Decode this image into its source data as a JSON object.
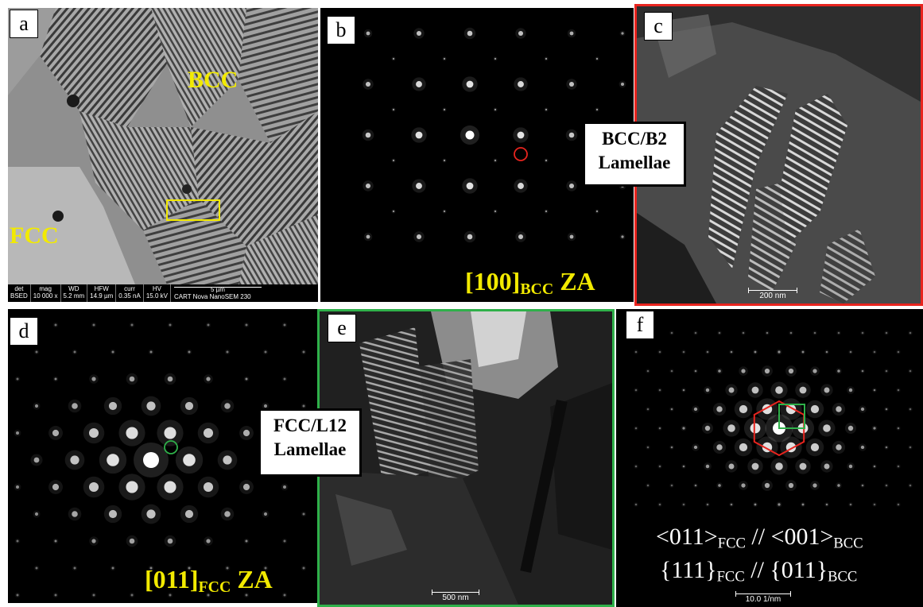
{
  "panels": {
    "a": {
      "label": "a",
      "bcc_text": "BCC",
      "fcc_text": "FCC",
      "databar": {
        "cols": [
          {
            "head": "det",
            "val": "BSED"
          },
          {
            "head": "mag",
            "val": "10 000 x"
          },
          {
            "head": "WD",
            "val": "5.2 mm"
          },
          {
            "head": "HFW",
            "val": "14.9 µm"
          },
          {
            "head": "curr",
            "val": "0.35 nA"
          },
          {
            "head": "HV",
            "val": "15.0 kV"
          }
        ],
        "scale": "5 µm",
        "instrument": "CART Nova NanoSEM 230"
      }
    },
    "b": {
      "label": "b",
      "zone_main": "[100]",
      "zone_sub": "BCC",
      "zone_suffix": "ZA"
    },
    "c": {
      "label": "c",
      "scale": "200 nm",
      "border_color": "#e8241e"
    },
    "d": {
      "label": "d",
      "zone_main": "[011]",
      "zone_sub": "FCC",
      "zone_suffix": "ZA"
    },
    "e": {
      "label": "e",
      "scale": "500 nm",
      "border_color": "#2fb14a"
    },
    "f": {
      "label": "f",
      "scale": "10.0 1/nm",
      "rel1": {
        "a": "<011>",
        "a_sub": "FCC",
        "mid": "//",
        "b": "<001>",
        "b_sub": "BCC"
      },
      "rel2": {
        "a": "{111}",
        "a_sub": "FCC",
        "mid": "//",
        "b": "{011}",
        "b_sub": "BCC"
      }
    }
  },
  "callouts": {
    "bcc": {
      "line1": "BCC/B2",
      "line2": "Lamellae"
    },
    "fcc": {
      "line1": "FCC/L12",
      "line2": "Lamellae"
    }
  },
  "colors": {
    "label_yellow": "#f2ea00",
    "marker_red": "#e8241e",
    "marker_green": "#2fb14a"
  }
}
